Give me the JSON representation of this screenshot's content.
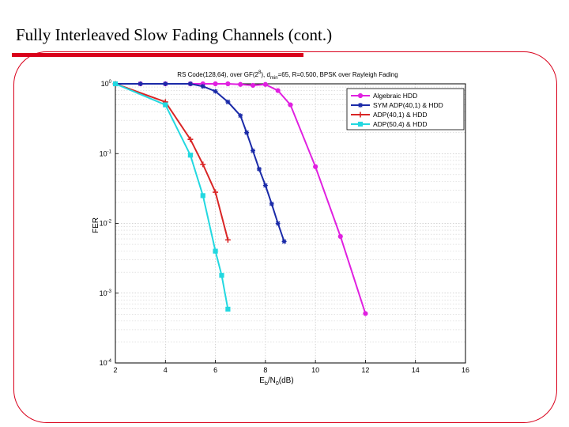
{
  "slide": {
    "title": "Fully Interleaved Slow Fading Channels (cont.)"
  },
  "colors": {
    "accent": "#d9001b",
    "series": [
      "#e020e0",
      "#1a2aa8",
      "#d92525",
      "#22d8e0"
    ]
  },
  "chart_data": {
    "type": "line",
    "title": "RS Code(128,64), over GF(2^8), d_min=65, R=0.500, BPSK over Rayleigh Fading",
    "title_parts": {
      "prefix": "RS Code(128,64), over GF(2",
      "sup": "8",
      "middle": "), d",
      "sub": "min",
      "suffix": "=65, R=0.500, BPSK over Rayleigh Fading"
    },
    "xlabel": "Eb/N0(dB)",
    "xlabel_parts": {
      "a": "E",
      "sub1": "b",
      "b": "/N",
      "sub2": "0",
      "c": "(dB)"
    },
    "ylabel": "FER",
    "xlim": [
      2,
      16
    ],
    "ylim": [
      0.0001,
      1
    ],
    "y_scale": "log",
    "grid": true,
    "legend_position": "top-right",
    "x_ticks": [
      2,
      4,
      6,
      8,
      10,
      12,
      14,
      16
    ],
    "y_ticks": [
      {
        "value": 1,
        "base": "10",
        "exp": "0"
      },
      {
        "value": 0.1,
        "base": "10",
        "exp": "-1"
      },
      {
        "value": 0.01,
        "base": "10",
        "exp": "-2"
      },
      {
        "value": 0.001,
        "base": "10",
        "exp": "-3"
      },
      {
        "value": 0.0001,
        "base": "10",
        "exp": "-4"
      }
    ],
    "series": [
      {
        "name": "Algebraic HDD",
        "marker": "circle",
        "color": "#e020e0",
        "x": [
          2,
          3,
          4,
          5,
          5.5,
          6,
          6.5,
          7,
          7.5,
          8,
          8.5,
          9,
          10,
          11,
          12
        ],
        "y": [
          1,
          1,
          1,
          1,
          1,
          1,
          1,
          0.98,
          0.95,
          0.98,
          0.8,
          0.5,
          0.065,
          0.0065,
          0.00051
        ]
      },
      {
        "name": "SYM ADP(40,1) & HDD",
        "marker": "star",
        "color": "#1a2aa8",
        "x": [
          2,
          3,
          4,
          5,
          5.5,
          6,
          6.5,
          7,
          7.25,
          7.5,
          7.75,
          8,
          8.25,
          8.5,
          8.75
        ],
        "y": [
          1,
          1,
          1,
          1,
          0.92,
          0.78,
          0.55,
          0.35,
          0.2,
          0.11,
          0.06,
          0.035,
          0.019,
          0.01,
          0.0055
        ]
      },
      {
        "name": "ADP(40,1) & HDD",
        "marker": "plus",
        "color": "#d92525",
        "x": [
          2,
          4,
          5,
          5.5,
          6,
          6.5
        ],
        "y": [
          1,
          0.55,
          0.16,
          0.07,
          0.028,
          0.0058
        ]
      },
      {
        "name": "ADP(50,4) & HDD",
        "marker": "square",
        "color": "#22d8e0",
        "x": [
          2,
          4,
          5,
          5.5,
          6,
          6.25,
          6.5
        ],
        "y": [
          1,
          0.5,
          0.095,
          0.025,
          0.004,
          0.0018,
          0.00059
        ]
      }
    ]
  }
}
